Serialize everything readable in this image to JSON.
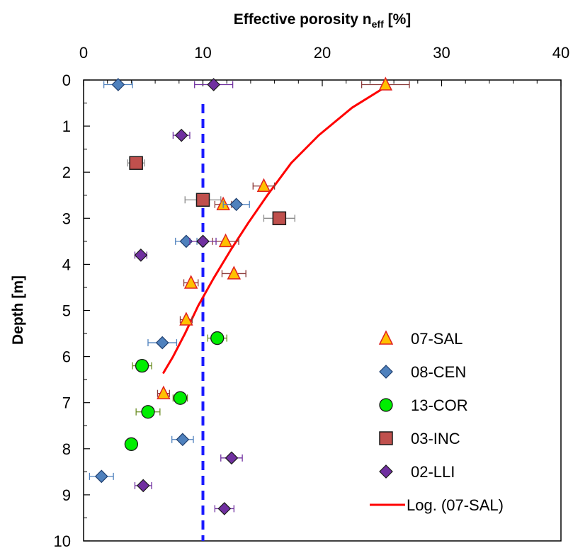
{
  "chart_data": {
    "type": "scatter",
    "title": "",
    "xlabel": {
      "main": "Effective porosity n",
      "sub": "eff",
      "suffix": " [%]"
    },
    "ylabel": "Depth [m]",
    "x_axis_position": "top",
    "y_axis_inverted": true,
    "xlim": [
      0,
      40
    ],
    "ylim": [
      0,
      10
    ],
    "xticks": [
      "0",
      "10",
      "20",
      "30",
      "40"
    ],
    "yticks": [
      "0",
      "1",
      "2",
      "3",
      "4",
      "5",
      "6",
      "7",
      "8",
      "9",
      "10"
    ],
    "grid": false,
    "legend_position": "bottom-right",
    "reference_line": {
      "x": 10,
      "style": "dashed",
      "color": "#1a1aff"
    },
    "series": [
      {
        "name": "07-SAL",
        "marker": "triangle",
        "fill": "#ffc000",
        "stroke": "#e02020",
        "error_color": "#8b3a3a",
        "points": [
          {
            "x": 25.3,
            "y": 0.1,
            "err": 2.0
          },
          {
            "x": 15.1,
            "y": 2.3,
            "err": 0.9
          },
          {
            "x": 11.7,
            "y": 2.7,
            "err": 0.7
          },
          {
            "x": 11.9,
            "y": 3.5,
            "err": 1.1
          },
          {
            "x": 12.6,
            "y": 4.2,
            "err": 1.0
          },
          {
            "x": 9.0,
            "y": 4.4,
            "err": 0.6
          },
          {
            "x": 8.6,
            "y": 5.2,
            "err": 0.5
          },
          {
            "x": 6.7,
            "y": 6.8,
            "err": 0.5
          }
        ]
      },
      {
        "name": "08-CEN",
        "marker": "diamond",
        "fill": "#4f81bd",
        "stroke": "#1f3f6f",
        "error_color": "#4f81bd",
        "points": [
          {
            "x": 2.9,
            "y": 0.1,
            "err": 1.2
          },
          {
            "x": 12.8,
            "y": 2.7,
            "err": 1.1
          },
          {
            "x": 8.6,
            "y": 3.5,
            "err": 0.9
          },
          {
            "x": 6.6,
            "y": 5.7,
            "err": 1.2
          },
          {
            "x": 8.3,
            "y": 7.8,
            "err": 0.9
          },
          {
            "x": 1.5,
            "y": 8.6,
            "err": 1.0
          }
        ]
      },
      {
        "name": "13-COR",
        "marker": "circle",
        "fill": "#00ee00",
        "stroke": "#1a1a1a",
        "error_color": "#6b8e23",
        "points": [
          {
            "x": 11.2,
            "y": 5.6,
            "err": 0.8
          },
          {
            "x": 4.9,
            "y": 6.2,
            "err": 0.8
          },
          {
            "x": 8.1,
            "y": 6.9,
            "err": 0.6
          },
          {
            "x": 5.4,
            "y": 7.2,
            "err": 1.0
          },
          {
            "x": 4.0,
            "y": 7.9,
            "err": 0.3
          }
        ]
      },
      {
        "name": "03-INC",
        "marker": "square",
        "fill": "#c0504d",
        "stroke": "#1a1a1a",
        "error_color": "#8c8c8c",
        "points": [
          {
            "x": 4.4,
            "y": 1.8,
            "err": 0.7
          },
          {
            "x": 10.0,
            "y": 2.6,
            "err": 1.5
          },
          {
            "x": 16.4,
            "y": 3.0,
            "err": 1.3
          }
        ]
      },
      {
        "name": "02-LLI",
        "marker": "diamond",
        "fill": "#7030a0",
        "stroke": "#1a1a1a",
        "error_color": "#7030a0",
        "points": [
          {
            "x": 10.9,
            "y": 0.1,
            "err": 1.6
          },
          {
            "x": 8.2,
            "y": 1.2,
            "err": 0.7
          },
          {
            "x": 10.0,
            "y": 3.5,
            "err": 1.1
          },
          {
            "x": 4.8,
            "y": 3.8,
            "err": 0.5
          },
          {
            "x": 12.4,
            "y": 8.2,
            "err": 0.9
          },
          {
            "x": 5.0,
            "y": 8.8,
            "err": 0.7
          },
          {
            "x": 11.8,
            "y": 9.3,
            "err": 0.8
          }
        ]
      }
    ],
    "trendline": {
      "name": "Log. (07-SAL)",
      "type": "logarithmic",
      "color": "#ff0000",
      "points": [
        {
          "x": 25.3,
          "y": 0.15
        },
        {
          "x": 22.5,
          "y": 0.6
        },
        {
          "x": 19.7,
          "y": 1.2
        },
        {
          "x": 17.4,
          "y": 1.8
        },
        {
          "x": 15.4,
          "y": 2.5
        },
        {
          "x": 13.8,
          "y": 3.1
        },
        {
          "x": 12.3,
          "y": 3.7
        },
        {
          "x": 10.9,
          "y": 4.3
        },
        {
          "x": 9.6,
          "y": 4.9
        },
        {
          "x": 8.5,
          "y": 5.5
        },
        {
          "x": 7.5,
          "y": 6.0
        },
        {
          "x": 6.7,
          "y": 6.35
        }
      ]
    }
  }
}
